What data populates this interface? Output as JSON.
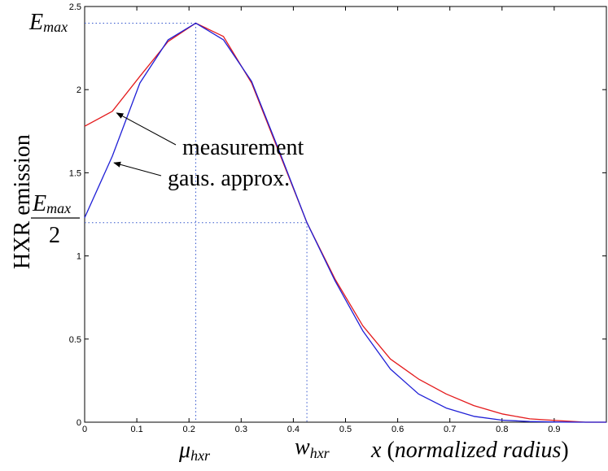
{
  "chart_data": {
    "type": "line",
    "xlabel": {
      "var": "x",
      "text": "(normalized radius)"
    },
    "ylabel": "HXR emission",
    "xlim": [
      0,
      1
    ],
    "ylim": [
      0,
      2.5
    ],
    "xticks": [
      0,
      0.1,
      0.2,
      0.3,
      0.4,
      0.5,
      0.6,
      0.7,
      0.8,
      0.9
    ],
    "yticks": [
      0,
      0.5,
      1,
      1.5,
      2,
      2.5
    ],
    "grid": false,
    "colors": {
      "measurement": "#e41a1c",
      "gaussian": "#1f1fd6",
      "reference": "#3355cc"
    },
    "series": [
      {
        "name": "measurement",
        "color": "#e41a1c",
        "x": [
          0,
          0.053,
          0.106,
          0.16,
          0.213,
          0.266,
          0.32,
          0.373,
          0.426,
          0.48,
          0.533,
          0.586,
          0.64,
          0.693,
          0.746,
          0.8,
          0.853,
          0.906,
          0.96,
          1.0
        ],
        "y": [
          1.78,
          1.87,
          2.08,
          2.29,
          2.4,
          2.32,
          2.04,
          1.62,
          1.2,
          0.86,
          0.58,
          0.38,
          0.26,
          0.17,
          0.1,
          0.05,
          0.02,
          0.01,
          0.0,
          0.0
        ]
      },
      {
        "name": "gaus. approx.",
        "color": "#1f1fd6",
        "x": [
          0,
          0.053,
          0.106,
          0.16,
          0.213,
          0.266,
          0.32,
          0.373,
          0.426,
          0.48,
          0.533,
          0.586,
          0.64,
          0.693,
          0.746,
          0.8,
          0.853,
          0.906,
          0.96,
          1.0
        ],
        "y": [
          1.23,
          1.6,
          2.04,
          2.3,
          2.4,
          2.3,
          2.05,
          1.63,
          1.2,
          0.85,
          0.55,
          0.32,
          0.17,
          0.085,
          0.035,
          0.012,
          0.004,
          0.001,
          0.0,
          0.0
        ]
      }
    ],
    "reference_lines": {
      "E_max": 2.4,
      "half_E_max": 1.2,
      "mu_hxr": 0.213,
      "w_hxr": 0.426
    },
    "annotations": [
      {
        "text": "measurement",
        "points_to": {
          "x": 0.055,
          "y": 1.87
        }
      },
      {
        "text": "gaus. approx.",
        "points_to": {
          "x": 0.05,
          "y": 1.57
        }
      }
    ],
    "symbol_labels": {
      "e_max_base": "E",
      "e_max_sub": "max",
      "half_num_base": "E",
      "half_num_sub": "max",
      "half_den": "2",
      "mu_base": "μ",
      "mu_sub": "hxr",
      "w_base": "w",
      "w_sub": "hxr"
    }
  }
}
